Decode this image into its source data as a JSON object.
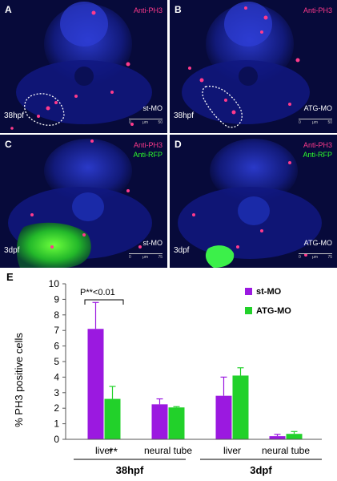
{
  "panels": [
    {
      "letter": "A",
      "stains": [
        "Anti-PH3"
      ],
      "stage": "38hpf",
      "condition": "st-MO",
      "scale": [
        "0",
        "μm",
        "50"
      ]
    },
    {
      "letter": "B",
      "stains": [
        "Anti-PH3"
      ],
      "stage": "38hpf",
      "condition": "ATG-MO",
      "scale": [
        "0",
        "μm",
        "50"
      ]
    },
    {
      "letter": "C",
      "stains": [
        "Anti-PH3",
        "Anti-RFP"
      ],
      "stage": "3dpf",
      "condition": "st-MO",
      "scale": [
        "0",
        "μm",
        "75"
      ]
    },
    {
      "letter": "D",
      "stains": [
        "Anti-PH3",
        "Anti-RFP"
      ],
      "stage": "3dpf",
      "condition": "ATG-MO",
      "scale": [
        "0",
        "μm",
        "75"
      ]
    }
  ],
  "colors": {
    "stain_ph3": "#ff3a8c",
    "stain_rfp": "#2cff2c",
    "st_mo": "#9b19e0",
    "atg_mo": "#22d12a"
  },
  "chart_data": {
    "type": "bar",
    "panel_letter": "E",
    "ylabel": "% PH3 positive cells",
    "ylim": [
      0,
      10
    ],
    "yticks": [
      0,
      1,
      2,
      3,
      4,
      5,
      6,
      7,
      8,
      9,
      10
    ],
    "categories": [
      "liver",
      "neural tube",
      "liver",
      "neural tube"
    ],
    "groups": [
      {
        "label": "38hpf",
        "categories": [
          0,
          1
        ]
      },
      {
        "label": "3dpf",
        "categories": [
          2,
          3
        ]
      }
    ],
    "series": [
      {
        "name": "st-MO",
        "color": "#9b19e0",
        "values": [
          7.1,
          2.25,
          2.8,
          0.2
        ],
        "errors": [
          1.7,
          0.35,
          1.2,
          0.12
        ]
      },
      {
        "name": "ATG-MO",
        "color": "#22d12a",
        "values": [
          2.6,
          2.05,
          4.1,
          0.35
        ],
        "errors": [
          0.8,
          0.05,
          0.5,
          0.15
        ]
      }
    ],
    "legend_position": "top-right",
    "annotations": {
      "significance": "P**<0.01",
      "liver_marker": "**"
    }
  }
}
